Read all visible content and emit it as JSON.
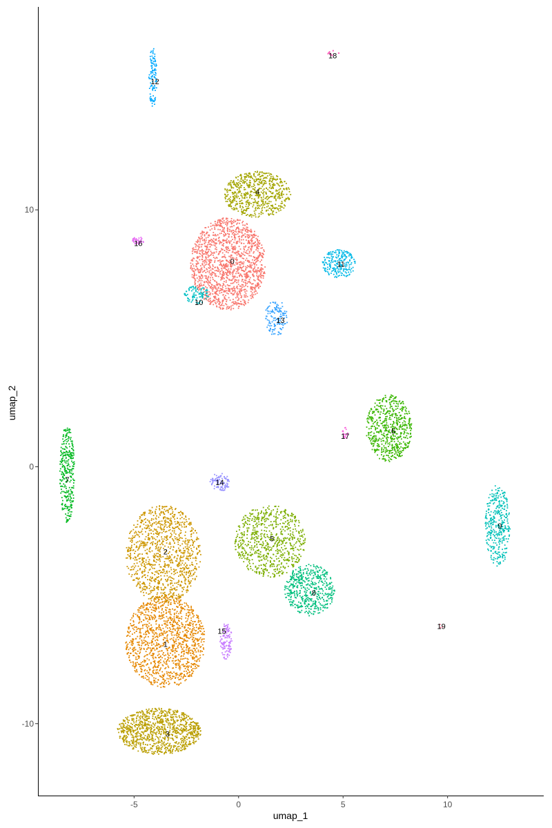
{
  "chart_data": {
    "type": "scatter",
    "title": "",
    "xlabel": "umap_1",
    "ylabel": "umap_2",
    "xlim": [
      -9.6,
      14.6
    ],
    "ylim": [
      -12.8,
      17.9
    ],
    "xticks": [
      -5,
      0,
      5,
      10
    ],
    "yticks": [
      -10,
      0,
      10
    ],
    "grid": false,
    "legend": "none",
    "point_size": 1.2,
    "clusters": [
      {
        "label": "0",
        "color": "#F8766D",
        "blobs": [
          {
            "cx": -0.5,
            "cy": 7.9,
            "rx": 1.8,
            "ry": 1.8,
            "n": 1500
          }
        ]
      },
      {
        "label": "1",
        "color": "#E58700",
        "blobs": [
          {
            "cx": -3.5,
            "cy": -6.8,
            "rx": 1.9,
            "ry": 1.8,
            "n": 1300
          }
        ]
      },
      {
        "label": "2",
        "color": "#CD9600",
        "blobs": [
          {
            "cx": -3.6,
            "cy": -3.4,
            "rx": 1.8,
            "ry": 1.9,
            "n": 1100
          }
        ]
      },
      {
        "label": "3",
        "color": "#BA9E00",
        "blobs": [
          {
            "cx": -3.8,
            "cy": -10.3,
            "rx": 2.0,
            "ry": 0.9,
            "n": 1050
          }
        ]
      },
      {
        "label": "4",
        "color": "#A3A500",
        "blobs": [
          {
            "cx": 0.9,
            "cy": 10.6,
            "rx": 1.6,
            "ry": 0.9,
            "n": 650
          }
        ]
      },
      {
        "label": "5",
        "color": "#7CAE00",
        "blobs": [
          {
            "cx": 1.5,
            "cy": -2.9,
            "rx": 1.7,
            "ry": 1.4,
            "n": 750
          }
        ]
      },
      {
        "label": "6",
        "color": "#39B600",
        "blobs": [
          {
            "cx": 7.2,
            "cy": 1.5,
            "rx": 1.1,
            "ry": 1.3,
            "n": 600
          }
        ]
      },
      {
        "label": "7",
        "color": "#00B81F",
        "blobs": [
          {
            "cx": -8.2,
            "cy": -0.3,
            "rx": 0.35,
            "ry": 1.9,
            "n": 320
          }
        ]
      },
      {
        "label": "8",
        "color": "#00BF7D",
        "blobs": [
          {
            "cx": 3.4,
            "cy": -4.8,
            "rx": 1.2,
            "ry": 1.0,
            "n": 500
          }
        ]
      },
      {
        "label": "9",
        "color": "#00C0B8",
        "blobs": [
          {
            "cx": 12.4,
            "cy": -2.3,
            "rx": 0.6,
            "ry": 1.6,
            "n": 360
          }
        ]
      },
      {
        "label": "10",
        "color": "#00BFC4",
        "blobs": [
          {
            "cx": -2.0,
            "cy": 6.7,
            "rx": 0.6,
            "ry": 0.35,
            "n": 90
          }
        ]
      },
      {
        "label": "11",
        "color": "#00B8E7",
        "blobs": [
          {
            "cx": 4.8,
            "cy": 7.9,
            "rx": 0.8,
            "ry": 0.55,
            "n": 220
          }
        ]
      },
      {
        "label": "12",
        "color": "#00A9FF",
        "blobs": [
          {
            "cx": -4.1,
            "cy": 15.1,
            "rx": 0.2,
            "ry": 1.2,
            "n": 110
          }
        ]
      },
      {
        "label": "13",
        "color": "#35A2FF",
        "blobs": [
          {
            "cx": 1.8,
            "cy": 5.8,
            "rx": 0.55,
            "ry": 0.7,
            "n": 130
          }
        ]
      },
      {
        "label": "14",
        "color": "#9590FF",
        "blobs": [
          {
            "cx": -0.9,
            "cy": -0.6,
            "rx": 0.5,
            "ry": 0.35,
            "n": 90
          }
        ]
      },
      {
        "label": "15",
        "color": "#C77CFF",
        "blobs": [
          {
            "cx": -0.6,
            "cy": -6.8,
            "rx": 0.3,
            "ry": 0.7,
            "n": 110
          }
        ]
      },
      {
        "label": "16",
        "color": "#E76BF3",
        "blobs": [
          {
            "cx": -4.8,
            "cy": 8.8,
            "rx": 0.3,
            "ry": 0.15,
            "n": 40
          }
        ]
      },
      {
        "label": "17",
        "color": "#FA62DB",
        "blobs": [
          {
            "cx": 5.1,
            "cy": 1.3,
            "rx": 0.15,
            "ry": 0.25,
            "n": 18
          }
        ]
      },
      {
        "label": "18",
        "color": "#FF62BC",
        "blobs": [
          {
            "cx": 4.5,
            "cy": 16.1,
            "rx": 0.3,
            "ry": 0.1,
            "n": 14
          }
        ]
      },
      {
        "label": "19",
        "color": "#FF6C90",
        "blobs": [
          {
            "cx": 9.7,
            "cy": -6.2,
            "rx": 0.08,
            "ry": 0.1,
            "n": 3
          }
        ]
      }
    ],
    "labels": [
      {
        "text": "0",
        "x": -0.3,
        "y": 8.0
      },
      {
        "text": "1",
        "x": -3.5,
        "y": -6.9
      },
      {
        "text": "2",
        "x": -3.5,
        "y": -3.3
      },
      {
        "text": "3",
        "x": -3.4,
        "y": -10.4
      },
      {
        "text": "4",
        "x": 0.9,
        "y": 10.7
      },
      {
        "text": "5",
        "x": 1.6,
        "y": -2.8
      },
      {
        "text": "6",
        "x": 7.4,
        "y": 1.4
      },
      {
        "text": "7",
        "x": -8.2,
        "y": -0.5
      },
      {
        "text": "8",
        "x": 3.6,
        "y": -4.9
      },
      {
        "text": "9",
        "x": 12.5,
        "y": -2.3
      },
      {
        "text": "10",
        "x": -1.9,
        "y": 6.4
      },
      {
        "text": "11",
        "x": 4.9,
        "y": 7.9
      },
      {
        "text": "12",
        "x": -4.0,
        "y": 15.0
      },
      {
        "text": "13",
        "x": 2.0,
        "y": 5.7
      },
      {
        "text": "14",
        "x": -0.9,
        "y": -0.6
      },
      {
        "text": "15",
        "x": -0.8,
        "y": -6.4
      },
      {
        "text": "16",
        "x": -4.8,
        "y": 8.7
      },
      {
        "text": "17",
        "x": 5.1,
        "y": 1.2
      },
      {
        "text": "18",
        "x": 4.5,
        "y": 16.0
      },
      {
        "text": "19",
        "x": 9.7,
        "y": -6.2
      }
    ]
  }
}
